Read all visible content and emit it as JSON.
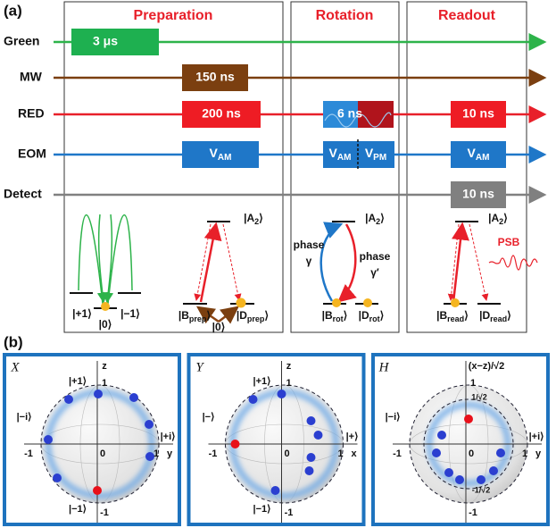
{
  "panel_labels": [
    "(a)",
    "(b)"
  ],
  "stages": [
    "Preparation",
    "Rotation",
    "Readout"
  ],
  "channels": [
    "Green",
    "MW",
    "RED",
    "EOM",
    "Detect"
  ],
  "pulses": {
    "green": "3 μs",
    "mw": "150 ns",
    "red_prep": "200 ns",
    "red_rot": "6 ns",
    "red_read": "10 ns",
    "eom_prep": [
      "V",
      "AM"
    ],
    "eom_rot_am": [
      "V",
      "AM"
    ],
    "eom_rot_pm": [
      "V",
      "PM"
    ],
    "eom_read": [
      "V",
      "AM"
    ],
    "detect": "10 ns"
  },
  "preparation": {
    "plus1": "|+1⟩",
    "minus1": "|−1⟩",
    "zero_left": "|0⟩",
    "a2": [
      "|A",
      "2",
      "⟩"
    ],
    "b_prep": [
      "|B",
      "prep",
      "⟩"
    ],
    "d_prep": [
      "|D",
      "prep",
      "⟩"
    ],
    "zero_right": "|0⟩"
  },
  "rotation": {
    "a2": [
      "|A",
      "2",
      "⟩"
    ],
    "phase_left": [
      "phase",
      "γ"
    ],
    "phase_right": [
      "phase",
      "γ′"
    ],
    "b_rot": [
      "|B",
      "rot",
      "⟩"
    ],
    "d_rot": [
      "|D",
      "rot",
      "⟩"
    ]
  },
  "readout": {
    "a2": [
      "|A",
      "2",
      "⟩"
    ],
    "psb": "PSB",
    "b_read": [
      "|B",
      "read",
      "⟩"
    ],
    "d_read": [
      "|D",
      "read",
      "⟩"
    ]
  },
  "bloch": [
    {
      "title": "X",
      "top_state": "|+1⟩",
      "top_axis": "z",
      "top_tick": "1",
      "left_state": "|−i⟩",
      "left_tick": "-1",
      "origin": "0",
      "right_tick": "1",
      "right_axis": "y",
      "right_state": "|+i⟩",
      "bottom_state": "|−1⟩",
      "bottom_tick": "-1"
    },
    {
      "title": "Y",
      "top_state": "|+1⟩",
      "top_axis": "z",
      "top_tick": "1",
      "left_state": "|−⟩",
      "left_tick": "-1",
      "origin": "0",
      "right_tick": "1",
      "right_axis": "x",
      "right_state": "|+⟩",
      "bottom_state": "|−1⟩",
      "bottom_tick": "-1"
    },
    {
      "title": "H",
      "top_axis": "(x−z)/√2",
      "top_tick": "1",
      "upper_tick": "1/√2",
      "left_state": "|−i⟩",
      "left_tick": "-1",
      "origin": "0",
      "right_tick": "1",
      "right_axis": "y",
      "right_state": "|+i⟩",
      "lower_tick": "-1/√2",
      "bottom_tick": "-1"
    }
  ]
}
